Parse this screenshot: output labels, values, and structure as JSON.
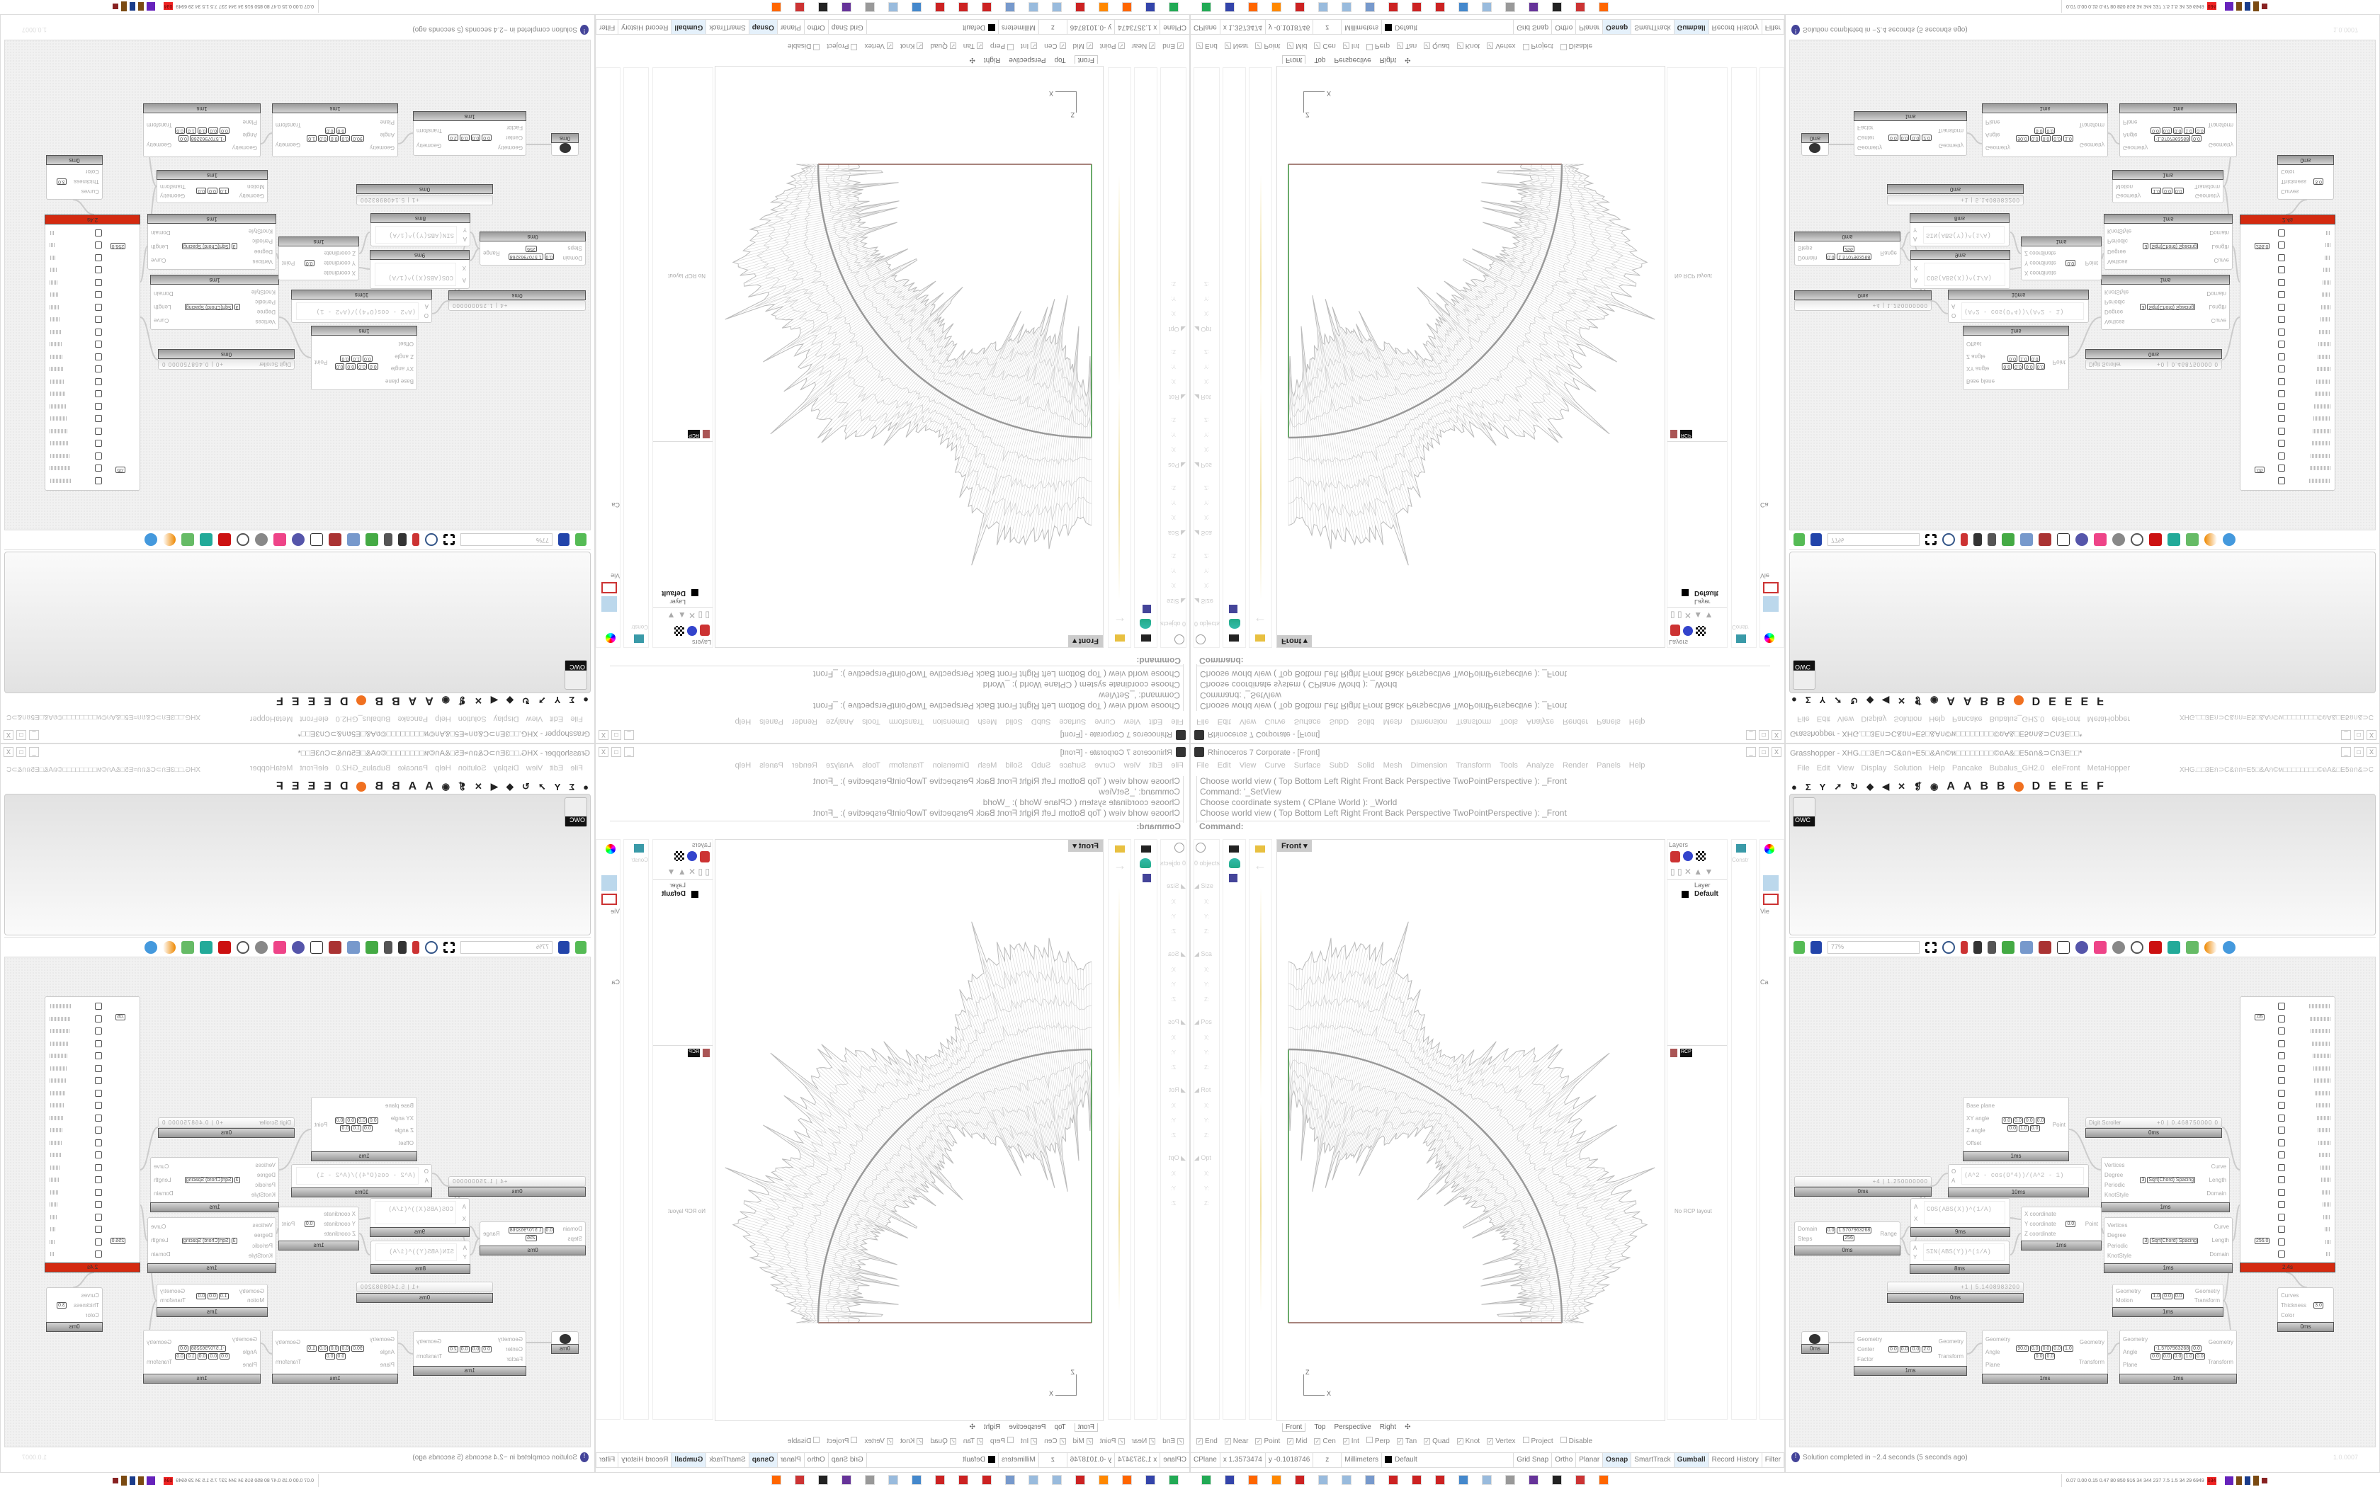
{
  "rhino": {
    "title": "Rhinoceros 7 Corporate - [Front]",
    "menu": [
      "File",
      "Edit",
      "View",
      "Curve",
      "Surface",
      "SubD",
      "Solid",
      "Mesh",
      "Dimension",
      "Transform",
      "Tools",
      "Analyze",
      "Render",
      "Panels",
      "Help"
    ],
    "command_history": [
      "Choose world view ( Top  Bottom  Left  Right  Front  Back  Perspective  TwoPointPerspective ): _Front",
      "Command: '_SetView",
      "Choose coordinate system ( CPlane  World ): _World",
      "Choose world view ( Top  Bottom  Left  Right  Front  Back  Perspective  TwoPointPerspective ): _Front"
    ],
    "command_prompt": "Command:",
    "properties": {
      "objects": "0 objects",
      "sections": [
        "Size",
        "Sca",
        "Pos",
        "Rot",
        "Opt"
      ],
      "axes": [
        "X:",
        "Y:",
        "Z:"
      ]
    },
    "viewport": {
      "name": "Front",
      "axis_x": "x",
      "axis_z": "z",
      "curve_color": "#999999",
      "x_axis_color": "#8b5a50",
      "z_axis_color": "#3a8f3a"
    },
    "viewport_tabs": [
      "Front",
      "Top",
      "Perspective",
      "Right"
    ],
    "layers": {
      "panel_title": "Layers",
      "column": "Layer",
      "rows": [
        {
          "name": "Default",
          "color": "#000000"
        }
      ]
    },
    "rcp": {
      "tab": "RCP",
      "empty": "No RCP layout"
    },
    "side_labels": {
      "constr": "Constr",
      "view": "Vie",
      "camera": "Ca"
    },
    "osnaps": [
      {
        "label": "End",
        "checked": true
      },
      {
        "label": "Near",
        "checked": true
      },
      {
        "label": "Point",
        "checked": true
      },
      {
        "label": "Mid",
        "checked": true
      },
      {
        "label": "Cen",
        "checked": true
      },
      {
        "label": "Int",
        "checked": true
      },
      {
        "label": "Perp",
        "checked": false
      },
      {
        "label": "Tan",
        "checked": true
      },
      {
        "label": "Quad",
        "checked": true
      },
      {
        "label": "Knot",
        "checked": true
      },
      {
        "label": "Vertex",
        "checked": true
      },
      {
        "label": "Project",
        "checked": false
      },
      {
        "label": "Disable",
        "checked": false
      }
    ],
    "status": {
      "cplane": "CPlane",
      "x": "x 1.3573474",
      "y": "y -0.1018746",
      "z": "z",
      "units": "Millimeters",
      "layer": "Default",
      "toggles": [
        {
          "label": "Grid Snap",
          "on": false
        },
        {
          "label": "Ortho",
          "on": false
        },
        {
          "label": "Planar",
          "on": false
        },
        {
          "label": "Osnap",
          "on": true
        },
        {
          "label": "SmartTrack",
          "on": false
        },
        {
          "label": "Gumball",
          "on": true
        },
        {
          "label": "Record History",
          "on": false
        },
        {
          "label": "Filter",
          "on": false
        }
      ]
    }
  },
  "grasshopper": {
    "title": "Grasshopper - XHG.□□3Eก⊃C&ถก≈E5□&Aก©ห□□□□□□□□©ถA&□E5ถก&⊃Cก3E□□*",
    "menu": [
      "File",
      "Edit",
      "View",
      "Display",
      "Solution",
      "Help",
      "Pancake",
      "Bubalus_GH2.0",
      "eleFront",
      "MetaHopper"
    ],
    "doc_label": "XHG.□□3Eก⊃C&ถก≈E5□&Aก©ห□□□□□□□□©ถA&□E5ถก&⊃C",
    "ribbon_tabs": [
      "A",
      "A",
      "B",
      "B",
      "D",
      "E",
      "E",
      "E",
      "F"
    ],
    "ribbon_item": "OWC",
    "zoom": "77%",
    "status": "Solution completed in ~2.4 seconds (5 seconds ago)",
    "version": "1.0.0007",
    "components": [
      {
        "name": "plane",
        "inputs": [
          "Base plane",
          "XY angle",
          "Z angle",
          "Offset"
        ],
        "outputs": [
          "Point"
        ],
        "values": [
          "0.0",
          "0.0",
          "0.0",
          "0.0",
          "0.0",
          "1.0",
          "0.0"
        ],
        "time": "1ms"
      },
      {
        "name": "digit-scroller",
        "label": "Digit Scroller",
        "prefix": "+0",
        "value": "0.468750000 0",
        "time": "0ms"
      },
      {
        "name": "number-slider",
        "prefix": "+4",
        "value": "1.250000000",
        "time": "0ms"
      },
      {
        "name": "expression",
        "inputs": [
          "O",
          "A"
        ],
        "expr": "(A^2 - cos(O*4))/(A^2 - 1)",
        "time": "10ms"
      },
      {
        "name": "interpolate-curve",
        "inputs": [
          "Vertices",
          "Degree",
          "Periodic",
          "KnotStyle"
        ],
        "outputs": [
          "Curve",
          "Length",
          "Domain"
        ],
        "values": [
          "3",
          "Sqrt(Chord) Spacing"
        ],
        "time": "1ms"
      },
      {
        "name": "expression",
        "inputs": [
          "A",
          "X"
        ],
        "expr": "COS(ABS(X))^(1/A)",
        "time": "9ms"
      },
      {
        "name": "expression",
        "inputs": [
          "A",
          "Y"
        ],
        "expr": "SIN(ABS(Y))^(1/A)",
        "time": "8ms"
      },
      {
        "name": "range",
        "inputs": [
          "Domain",
          "Steps"
        ],
        "outputs": [
          "Range"
        ],
        "values": [
          "0.0",
          "1.5707963268",
          "256"
        ],
        "time": "0ms"
      },
      {
        "name": "construct-point",
        "inputs": [
          "X coordinate",
          "Y coordinate",
          "Z coordinate"
        ],
        "outputs": [
          "Point"
        ],
        "values": [
          "0.0"
        ],
        "time": "1ms"
      },
      {
        "name": "interpolate-curve",
        "inputs": [
          "Vertices",
          "Degree",
          "Periodic",
          "KnotStyle"
        ],
        "outputs": [
          "Curve",
          "Length",
          "Domain"
        ],
        "values": [
          "3",
          "Sqrt(Chord) Spacing"
        ],
        "time": "1ms"
      },
      {
        "name": "number-slider",
        "prefix": "+1",
        "value": "5.1408983200",
        "time": "0ms"
      },
      {
        "name": "move",
        "inputs": [
          "Geometry",
          "Motion"
        ],
        "outputs": [
          "Geometry",
          "Transform"
        ],
        "values": [
          "1.0",
          "0.0",
          "0.0"
        ],
        "time": "1ms"
      },
      {
        "name": "custom-preview",
        "inputs": [
          "Curves",
          "Thickness",
          "Color"
        ],
        "outputs": [],
        "values": [
          "3.0"
        ],
        "time": "0ms"
      },
      {
        "name": "geometry-param",
        "inputs": [],
        "outputs": [],
        "values": [],
        "time": "0ms"
      },
      {
        "name": "scale",
        "inputs": [
          "Geometry",
          "Center",
          "Factor"
        ],
        "outputs": [
          "Geometry",
          "Transform"
        ],
        "values": [
          "0.0",
          "0.0",
          "0.0",
          "2.0"
        ],
        "time": "1ms"
      },
      {
        "name": "rotate",
        "inputs": [
          "Geometry",
          "Angle",
          "Plane"
        ],
        "outputs": [
          "Geometry",
          "Transform"
        ],
        "values": [
          "90.0",
          "0.0",
          "0.0",
          "0.0",
          "1.0",
          "0.0",
          "0.0"
        ],
        "time": "1ms"
      },
      {
        "name": "rotate",
        "inputs": [
          "Geometry",
          "Angle",
          "Plane"
        ],
        "outputs": [
          "Geometry",
          "Transform"
        ],
        "values": [
          "-1.5707963268",
          "0.0",
          "0.0",
          "0.0",
          "0.0",
          "1.0",
          "0.0"
        ],
        "time": "1ms"
      },
      {
        "name": "gene-list",
        "inputs": [],
        "outputs": [],
        "values": [
          ".05",
          "256.0"
        ],
        "time": "2.4s",
        "error_color": "#d42a10"
      }
    ]
  },
  "taskbar": {
    "meter": "0.07 0.00 0.15 0.47 80 850 916 34 344 237 7.5 1.5 34 29 6949",
    "meter_alert": "034",
    "apps": [
      "app-manager",
      "floppy-64",
      "firefox",
      "blender",
      "red-app",
      "notepad",
      "notepad",
      "calculator",
      "red-app",
      "red-app",
      "red-app",
      "remote",
      "notepad",
      "scroll",
      "discord",
      "rhino",
      "red-app",
      "firefox"
    ]
  }
}
